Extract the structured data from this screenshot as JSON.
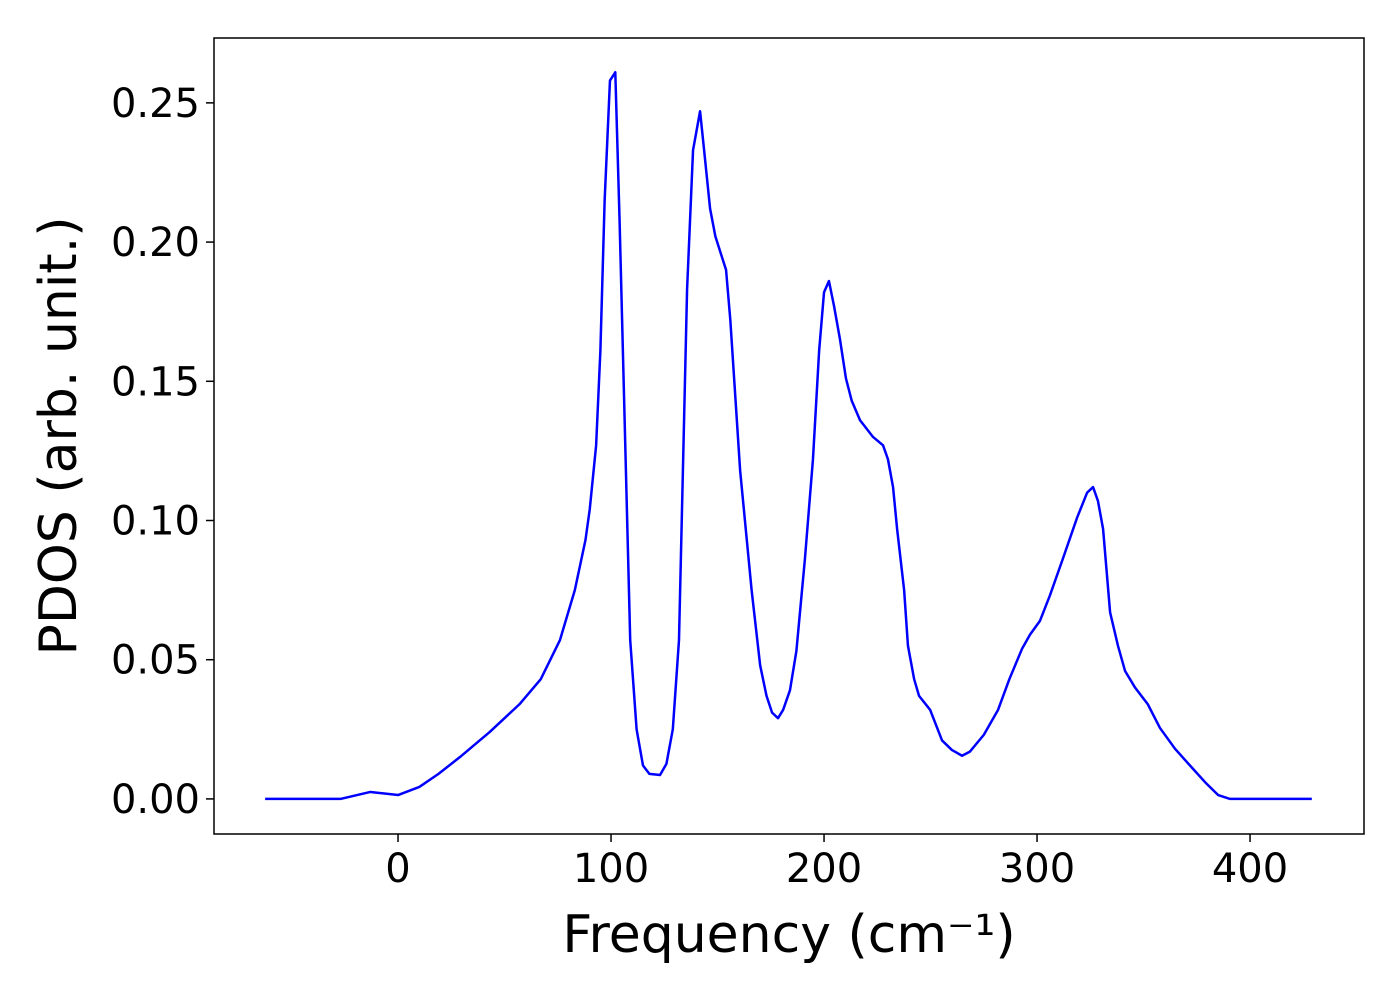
{
  "chart_data": {
    "type": "line",
    "xlabel": "Frequency (cm⁻¹)",
    "ylabel": "PDOS (arb. unit.)",
    "x": [
      -62.4,
      -27,
      -13,
      0,
      10,
      19,
      29,
      43,
      57,
      67,
      76,
      83,
      88,
      90,
      93,
      95,
      97,
      99.5,
      102,
      104,
      109,
      112,
      115,
      118,
      123,
      126,
      129,
      131.9,
      135.7,
      138.5,
      141.8,
      143.7,
      146.5,
      149,
      154,
      156,
      160.6,
      166,
      170,
      173,
      175.6,
      178.4,
      180.8,
      184,
      187,
      191,
      194.8,
      197.7,
      200,
      202.3,
      204.7,
      207.5,
      210.3,
      213,
      216.9,
      223,
      227.7,
      230,
      232.4,
      234.3,
      237.6,
      239.4,
      242.3,
      244.6,
      249.8,
      255.4,
      260,
      264.8,
      268.5,
      275,
      281.7,
      287,
      293,
      296.7,
      301.4,
      306,
      312,
      318.8,
      323.5,
      326.3,
      328.6,
      331,
      334.3,
      338,
      341.3,
      346,
      352,
      357.7,
      364.8,
      371.8,
      378.9,
      385,
      390.6,
      429
    ],
    "series": [
      {
        "name": "PDOS",
        "color": "#0000ff",
        "values": [
          0,
          0,
          0.0025,
          0.0014,
          0.0043,
          0.009,
          0.015,
          0.024,
          0.034,
          0.043,
          0.057,
          0.075,
          0.093,
          0.104,
          0.127,
          0.161,
          0.215,
          0.258,
          0.261,
          0.208,
          0.057,
          0.025,
          0.012,
          0.009,
          0.0086,
          0.0126,
          0.025,
          0.057,
          0.183,
          0.233,
          0.247,
          0.233,
          0.212,
          0.202,
          0.19,
          0.172,
          0.118,
          0.075,
          0.048,
          0.037,
          0.031,
          0.029,
          0.032,
          0.039,
          0.053,
          0.086,
          0.122,
          0.161,
          0.182,
          0.186,
          0.177,
          0.165,
          0.151,
          0.143,
          0.136,
          0.13,
          0.127,
          0.122,
          0.112,
          0.097,
          0.075,
          0.055,
          0.043,
          0.037,
          0.032,
          0.021,
          0.0176,
          0.0155,
          0.017,
          0.023,
          0.032,
          0.043,
          0.054,
          0.059,
          0.064,
          0.073,
          0.086,
          0.101,
          0.11,
          0.112,
          0.107,
          0.097,
          0.067,
          0.055,
          0.046,
          0.04,
          0.034,
          0.0255,
          0.018,
          0.012,
          0.006,
          0.0014,
          0,
          0
        ]
      }
    ],
    "xlim": [
      -86.4,
      453.5
    ],
    "ylim": [
      -0.0126,
      0.2733
    ],
    "xticks": [
      0,
      100,
      200,
      300,
      400
    ],
    "yticks": [
      {
        "value": 0,
        "label": "0.00"
      },
      {
        "value": 0.05,
        "label": "0.05"
      },
      {
        "value": 0.1,
        "label": "0.10"
      },
      {
        "value": 0.15,
        "label": "0.15"
      },
      {
        "value": 0.2,
        "label": "0.20"
      },
      {
        "value": 0.25,
        "label": "0.25"
      }
    ]
  }
}
